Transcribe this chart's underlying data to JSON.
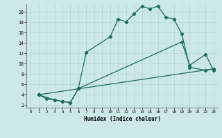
{
  "xlabel": "Humidex (Indice chaleur)",
  "xlim": [
    -0.5,
    23.5
  ],
  "ylim": [
    1.5,
    21.5
  ],
  "yticks": [
    2,
    4,
    6,
    8,
    10,
    12,
    14,
    16,
    18,
    20
  ],
  "xticks": [
    0,
    1,
    2,
    3,
    4,
    5,
    6,
    7,
    8,
    9,
    10,
    11,
    12,
    13,
    14,
    15,
    16,
    17,
    18,
    19,
    20,
    21,
    22,
    23
  ],
  "bg_color": "#cde8e8",
  "line_color": "#1a6b5a",
  "grid_major_color": "#b8d8d8",
  "grid_minor_color": "#d8ecec",
  "line1_x": [
    1,
    2,
    3,
    4,
    5,
    6,
    7,
    10,
    11,
    12,
    13,
    14,
    15,
    16,
    17,
    18,
    19,
    20,
    22,
    23
  ],
  "line1_y": [
    4,
    3.2,
    3.0,
    2.7,
    2.5,
    5.2,
    12.2,
    15.2,
    18.6,
    18.1,
    19.6,
    21.1,
    20.6,
    21.1,
    19.0,
    18.6,
    15.8,
    9.3,
    8.7,
    9.0
  ],
  "line2_x": [
    1,
    3,
    4,
    5,
    6,
    19,
    20,
    22,
    23
  ],
  "line2_y": [
    4,
    3.0,
    2.7,
    2.5,
    5.2,
    14.2,
    9.7,
    11.8,
    8.7
  ],
  "line3_x": [
    1,
    23
  ],
  "line3_y": [
    4,
    9.0
  ]
}
